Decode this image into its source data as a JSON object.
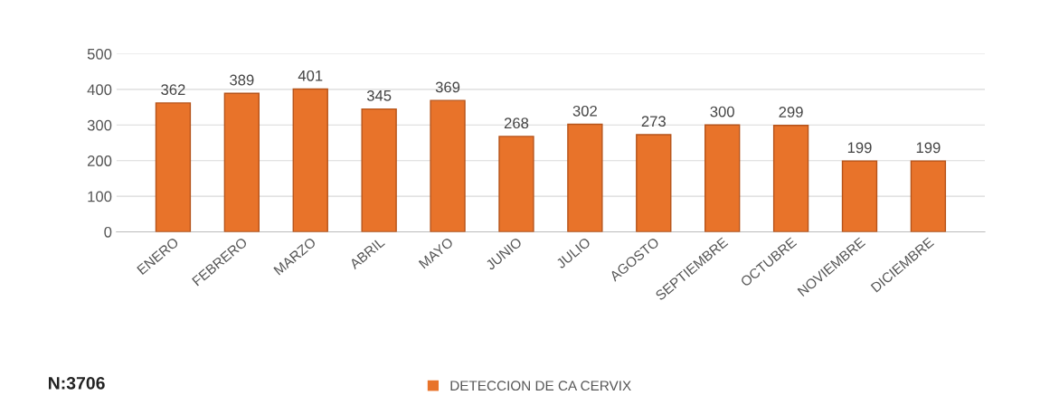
{
  "chart_data": {
    "type": "bar",
    "categories": [
      "ENERO",
      "FEBRERO",
      "MARZO",
      "ABRIL",
      "MAYO",
      "JUNIO",
      "JULIO",
      "AGOSTO",
      "SEPTIEMBRE",
      "OCTUBRE",
      "NOVIEMBRE",
      "DICIEMBRE"
    ],
    "series": [
      {
        "name": "DETECCION DE CA CERVIX",
        "color": "#e8732a",
        "values": [
          362,
          389,
          401,
          345,
          369,
          268,
          302,
          273,
          300,
          299,
          199,
          199
        ]
      }
    ],
    "ylim": [
      0,
      500
    ],
    "yticks": [
      0,
      100,
      200,
      300,
      400,
      500
    ],
    "grid": "y",
    "data_labels": true,
    "legend": "bottom",
    "annotations": [
      "N:3706"
    ]
  }
}
